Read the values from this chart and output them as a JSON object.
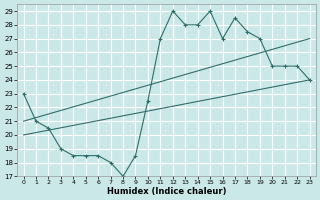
{
  "xlabel": "Humidex (Indice chaleur)",
  "ylabel": "",
  "bg_color": "#cbe8e8",
  "line_color": "#2e6e6a",
  "grid_color": "#ffffff",
  "xlim": [
    -0.5,
    23.5
  ],
  "ylim": [
    17,
    29.5
  ],
  "yticks": [
    17,
    18,
    19,
    20,
    21,
    22,
    23,
    24,
    25,
    26,
    27,
    28,
    29
  ],
  "xticks": [
    0,
    1,
    2,
    3,
    4,
    5,
    6,
    7,
    8,
    9,
    10,
    11,
    12,
    13,
    14,
    15,
    16,
    17,
    18,
    19,
    20,
    21,
    22,
    23
  ],
  "series1_x": [
    0,
    1,
    2,
    3,
    4,
    5,
    6,
    7,
    8,
    9,
    10,
    11,
    12,
    13,
    14,
    15,
    16,
    17,
    18,
    19,
    20,
    21,
    22,
    23
  ],
  "series1_y": [
    23,
    21,
    20.5,
    19,
    18.5,
    18.5,
    18.5,
    18,
    17,
    18.5,
    22.5,
    27,
    29,
    28,
    28,
    29,
    27,
    28.5,
    27.5,
    27,
    25,
    25,
    25,
    24
  ],
  "line2_x0": 0,
  "line2_x1": 23,
  "line2_y0": 21.0,
  "line2_y1": 27.0,
  "line3_x0": 0,
  "line3_x1": 23,
  "line3_y0": 20.0,
  "line3_y1": 24.0
}
